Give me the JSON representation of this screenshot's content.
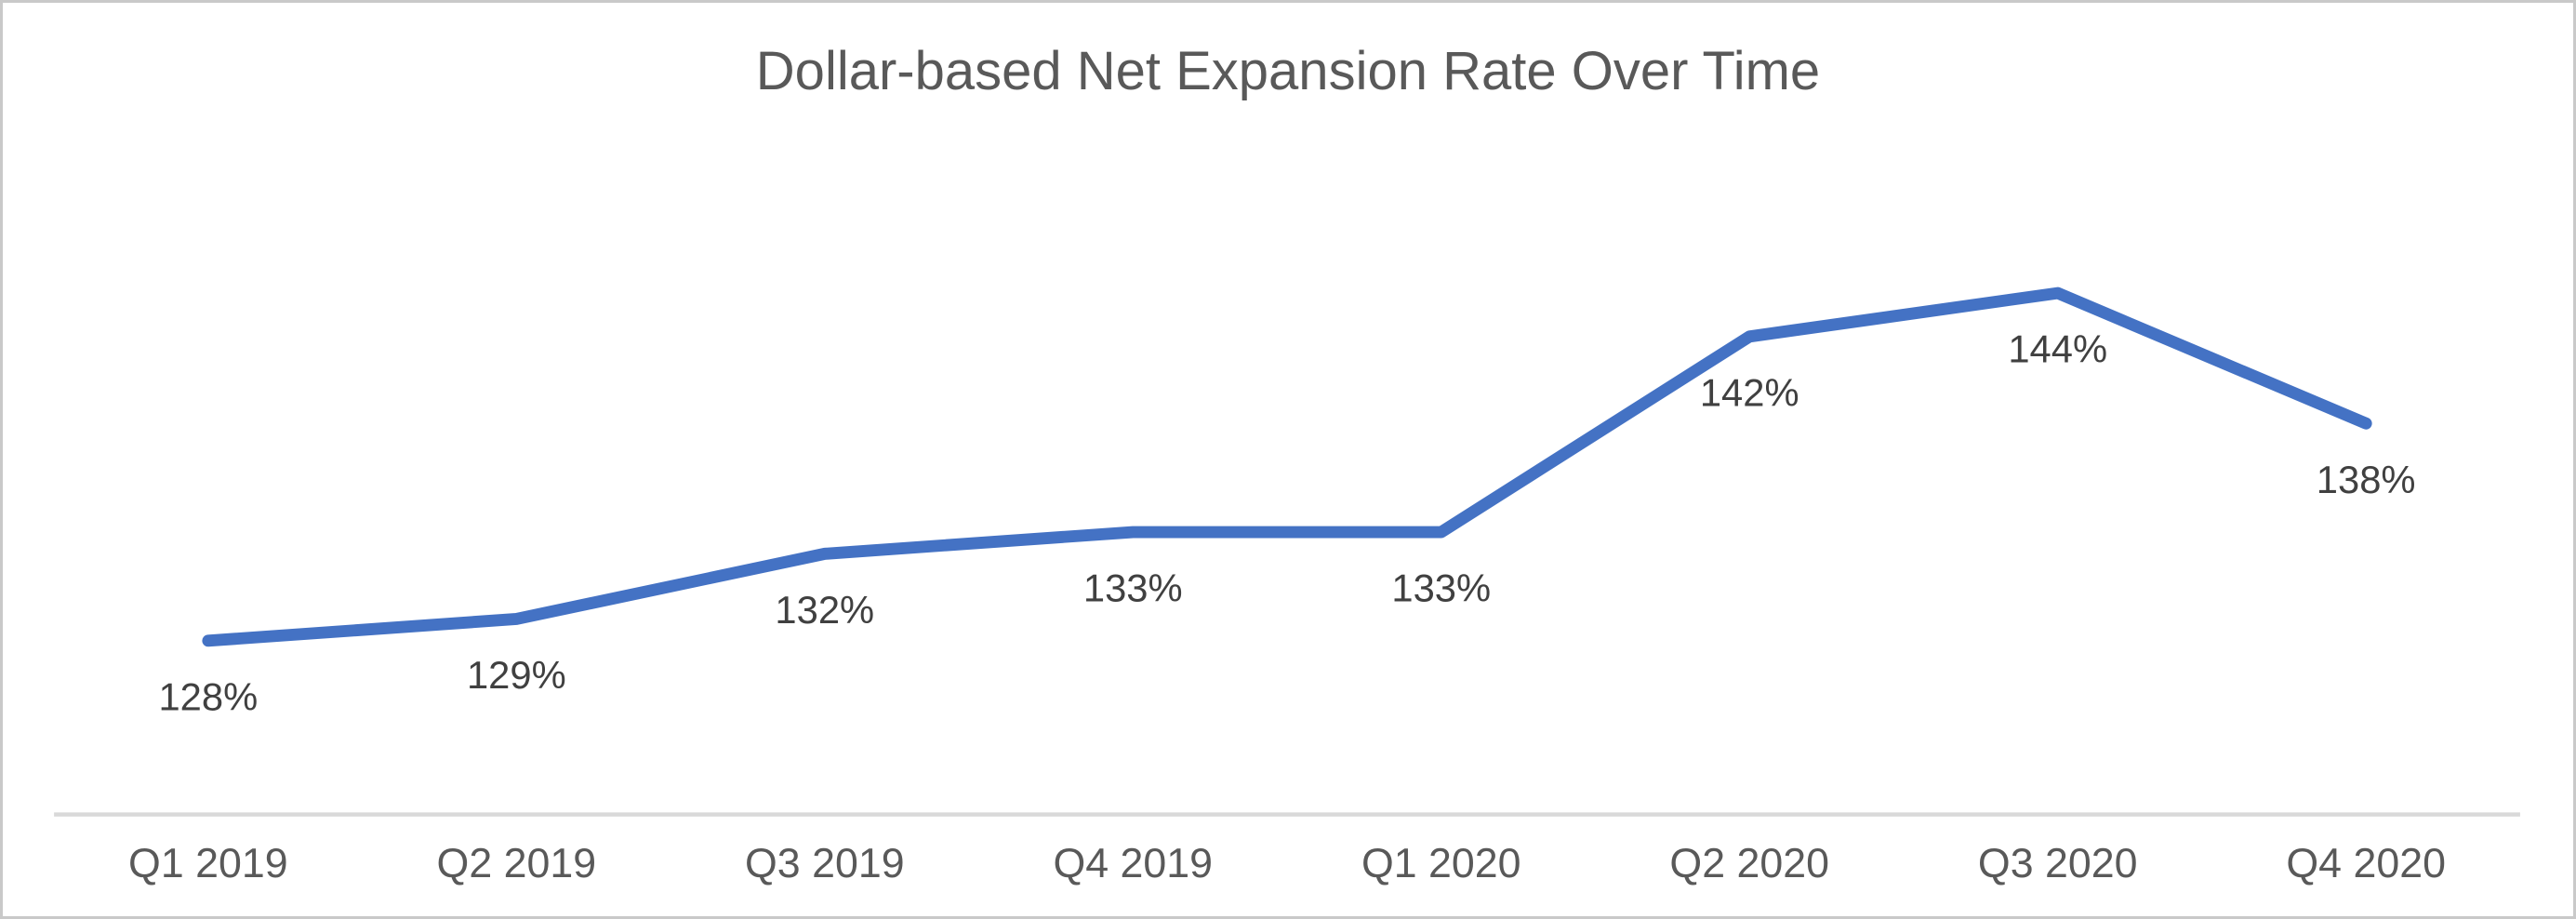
{
  "chart_data": {
    "type": "line",
    "title": "Dollar-based Net Expansion Rate Over Time",
    "categories": [
      "Q1 2019",
      "Q2 2019",
      "Q3 2019",
      "Q4 2019",
      "Q1 2020",
      "Q2 2020",
      "Q3 2020",
      "Q4 2020"
    ],
    "values": [
      128,
      129,
      132,
      133,
      133,
      142,
      144,
      138
    ],
    "data_labels": [
      "128%",
      "129%",
      "132%",
      "133%",
      "133%",
      "142%",
      "144%",
      "138%"
    ],
    "xlabel": "",
    "ylabel": "",
    "ylim": [
      120,
      150
    ],
    "grid": false,
    "legend": false,
    "y_axis_visible": false,
    "data_label_position": "below",
    "colors": {
      "line": "#4472C4",
      "axis_line": "#D9D9D9",
      "title_text": "#595959",
      "data_label_text": "#404040",
      "tick_label_text": "#595959",
      "background": "#ffffff",
      "frame_border": "#c9c9c9"
    }
  }
}
